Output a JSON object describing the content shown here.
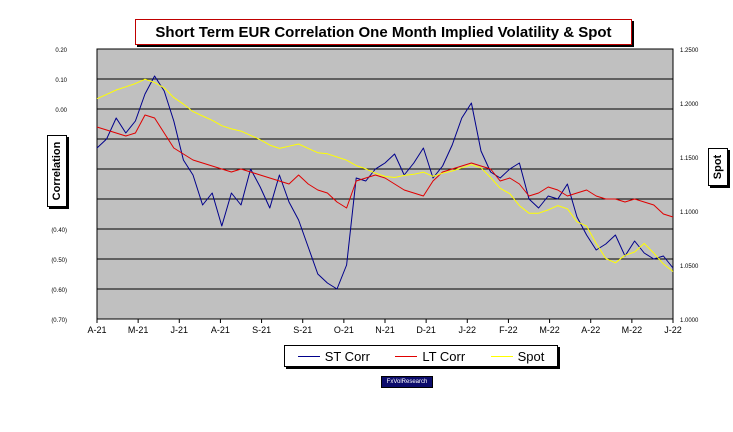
{
  "chart_data": {
    "type": "line",
    "title": "Short Term EUR Correlation One Month Implied Volatility & Spot",
    "ylabel": "Correlation",
    "y2label": "Spot",
    "ylim": [
      -0.7,
      0.2
    ],
    "y2lim": [
      1.0,
      1.25
    ],
    "yticks": [
      "0.20",
      "0.10",
      "0.00",
      "(0.10)",
      "(0.20)",
      "(0.30)",
      "(0.40)",
      "(0.50)",
      "(0.60)",
      "(0.70)"
    ],
    "y2ticks": [
      "1.2500",
      "1.2000",
      "1.1500",
      "1.1000",
      "1.0500",
      "1.0000"
    ],
    "xticks": [
      "A-21",
      "M-21",
      "J-21",
      "A-21",
      "S-21",
      "S-21",
      "O-21",
      "N-21",
      "D-21",
      "J-22",
      "F-22",
      "M-22",
      "A-22",
      "M-22",
      "J-22"
    ],
    "x": [
      0,
      5,
      10,
      15,
      20,
      25,
      30,
      35,
      40,
      45,
      50,
      55,
      60,
      65,
      70,
      75,
      80,
      85,
      90,
      95,
      100,
      105,
      110,
      115,
      120,
      125,
      130,
      135,
      140,
      145,
      150,
      155,
      160,
      165,
      170,
      175,
      180,
      185,
      190,
      195,
      200,
      205,
      210,
      215,
      220,
      225,
      230,
      235,
      240,
      245,
      250,
      255,
      260,
      265,
      270,
      275,
      280,
      285,
      290,
      295,
      300
    ],
    "series": [
      {
        "name": "ST Corr",
        "color": "#00008b",
        "axis": "left",
        "values": [
          -0.13,
          -0.1,
          -0.03,
          -0.08,
          -0.04,
          0.05,
          0.11,
          0.06,
          -0.04,
          -0.17,
          -0.22,
          -0.32,
          -0.28,
          -0.39,
          -0.28,
          -0.32,
          -0.2,
          -0.26,
          -0.33,
          -0.22,
          -0.31,
          -0.37,
          -0.46,
          -0.55,
          -0.58,
          -0.6,
          -0.52,
          -0.23,
          -0.24,
          -0.2,
          -0.18,
          -0.15,
          -0.22,
          -0.18,
          -0.13,
          -0.23,
          -0.19,
          -0.12,
          -0.03,
          0.02,
          -0.14,
          -0.21,
          -0.23,
          -0.2,
          -0.18,
          -0.3,
          -0.33,
          -0.29,
          -0.3,
          -0.25,
          -0.36,
          -0.42,
          -0.47,
          -0.45,
          -0.42,
          -0.49,
          -0.44,
          -0.48,
          -0.5,
          -0.49,
          -0.53
        ]
      },
      {
        "name": "LT Corr",
        "color": "#e00000",
        "axis": "left",
        "values": [
          -0.06,
          -0.07,
          -0.08,
          -0.09,
          -0.08,
          -0.02,
          -0.03,
          -0.08,
          -0.13,
          -0.15,
          -0.17,
          -0.18,
          -0.19,
          -0.2,
          -0.21,
          -0.2,
          -0.21,
          -0.22,
          -0.23,
          -0.24,
          -0.25,
          -0.22,
          -0.25,
          -0.27,
          -0.28,
          -0.31,
          -0.33,
          -0.24,
          -0.23,
          -0.22,
          -0.23,
          -0.25,
          -0.27,
          -0.28,
          -0.29,
          -0.24,
          -0.21,
          -0.2,
          -0.19,
          -0.18,
          -0.19,
          -0.2,
          -0.24,
          -0.23,
          -0.25,
          -0.29,
          -0.28,
          -0.26,
          -0.27,
          -0.29,
          -0.28,
          -0.27,
          -0.29,
          -0.3,
          -0.3,
          -0.31,
          -0.3,
          -0.31,
          -0.32,
          -0.35,
          -0.36
        ]
      },
      {
        "name": "Spot",
        "color": "#ffff00",
        "axis": "right",
        "values": [
          1.204,
          1.208,
          1.212,
          1.215,
          1.218,
          1.222,
          1.219,
          1.214,
          1.205,
          1.199,
          1.192,
          1.188,
          1.184,
          1.179,
          1.176,
          1.174,
          1.17,
          1.166,
          1.161,
          1.158,
          1.16,
          1.162,
          1.158,
          1.154,
          1.153,
          1.15,
          1.147,
          1.142,
          1.139,
          1.135,
          1.132,
          1.131,
          1.133,
          1.134,
          1.136,
          1.132,
          1.135,
          1.137,
          1.14,
          1.143,
          1.14,
          1.131,
          1.121,
          1.116,
          1.105,
          1.098,
          1.098,
          1.101,
          1.105,
          1.102,
          1.09,
          1.086,
          1.07,
          1.056,
          1.052,
          1.059,
          1.062,
          1.07,
          1.061,
          1.051,
          1.044
        ]
      }
    ],
    "legend_position": "bottom"
  },
  "source_label": "FxVolResearch"
}
